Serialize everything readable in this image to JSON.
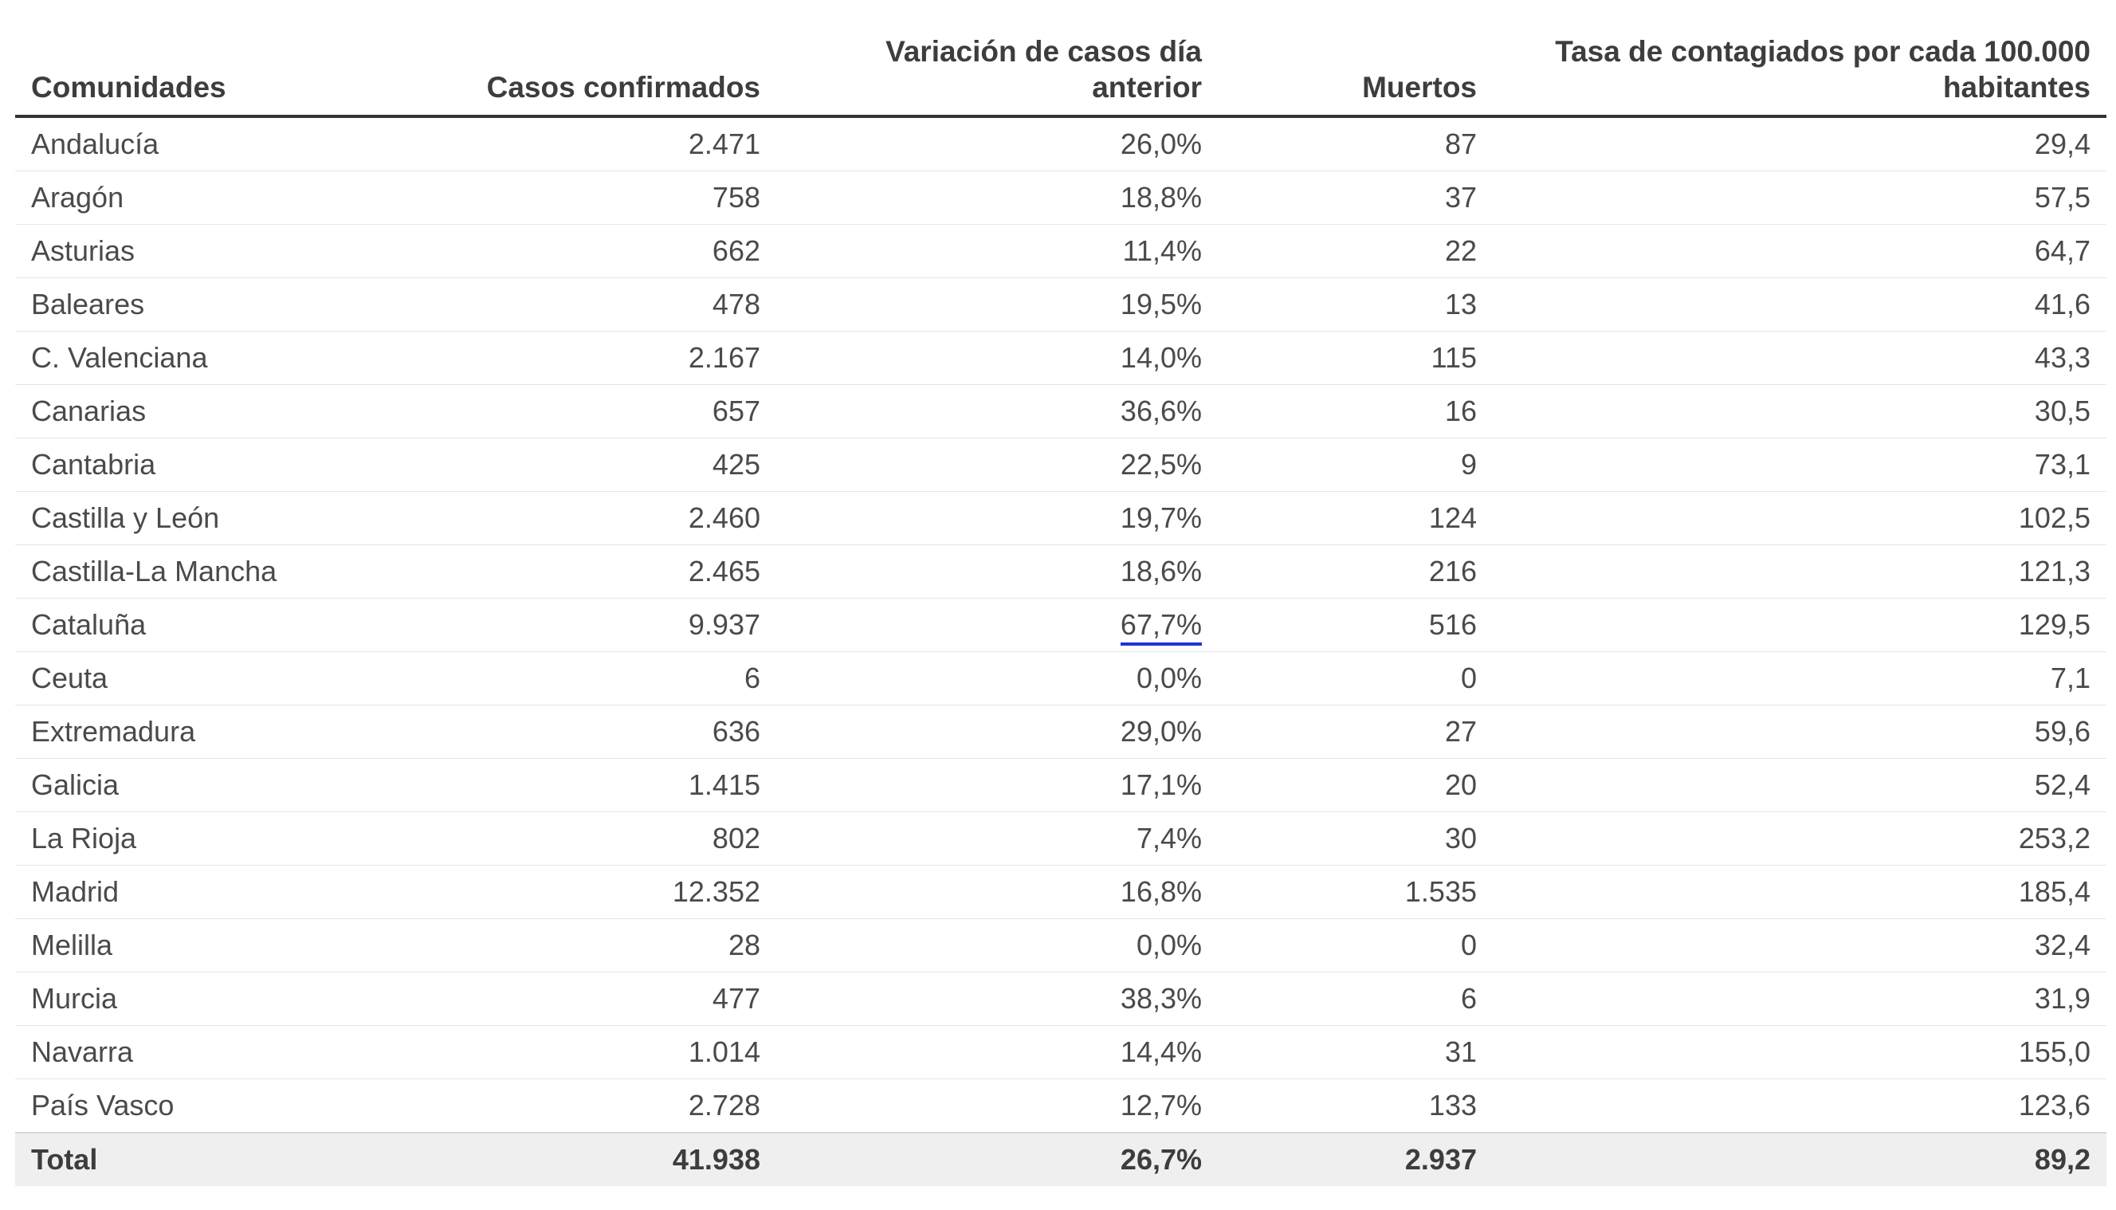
{
  "table": {
    "headers": [
      "Comunidades",
      "Casos confirmados",
      "Variación de casos día anterior",
      "Muertos",
      "Tasa de contagiados por cada 100.000 habitantes"
    ],
    "rows": [
      [
        "Andalucía",
        "2.471",
        "26,0%",
        "87",
        "29,4"
      ],
      [
        "Aragón",
        "758",
        "18,8%",
        "37",
        "57,5"
      ],
      [
        "Asturias",
        "662",
        "11,4%",
        "22",
        "64,7"
      ],
      [
        "Baleares",
        "478",
        "19,5%",
        "13",
        "41,6"
      ],
      [
        "C. Valenciana",
        "2.167",
        "14,0%",
        "115",
        "43,3"
      ],
      [
        "Canarias",
        "657",
        "36,6%",
        "16",
        "30,5"
      ],
      [
        "Cantabria",
        "425",
        "22,5%",
        "9",
        "73,1"
      ],
      [
        "Castilla y León",
        "2.460",
        "19,7%",
        "124",
        "102,5"
      ],
      [
        "Castilla-La Mancha",
        "2.465",
        "18,6%",
        "216",
        "121,3"
      ],
      [
        "Cataluña",
        "9.937",
        "67,7%",
        "516",
        "129,5"
      ],
      [
        "Ceuta",
        "6",
        "0,0%",
        "0",
        "7,1"
      ],
      [
        "Extremadura",
        "636",
        "29,0%",
        "27",
        "59,6"
      ],
      [
        "Galicia",
        "1.415",
        "17,1%",
        "20",
        "52,4"
      ],
      [
        "La Rioja",
        "802",
        "7,4%",
        "30",
        "253,2"
      ],
      [
        "Madrid",
        "12.352",
        "16,8%",
        "1.535",
        "185,4"
      ],
      [
        "Melilla",
        "28",
        "0,0%",
        "0",
        "32,4"
      ],
      [
        "Murcia",
        "477",
        "38,3%",
        "6",
        "31,9"
      ],
      [
        "Navarra",
        "1.014",
        "14,4%",
        "31",
        "155,0"
      ],
      [
        "País Vasco",
        "2.728",
        "12,7%",
        "133",
        "123,6"
      ]
    ],
    "total": [
      "Total",
      "41.938",
      "26,7%",
      "2.937",
      "89,2"
    ]
  },
  "colors": {
    "text": "#4a4a4a",
    "header_rule": "#333333",
    "row_rule": "#e6e6e6",
    "total_background": "#efefef",
    "highlight_underline": "#1f33d6"
  },
  "highlighted_cell": {
    "row": "Cataluña",
    "column": "Variación de casos día anterior"
  }
}
